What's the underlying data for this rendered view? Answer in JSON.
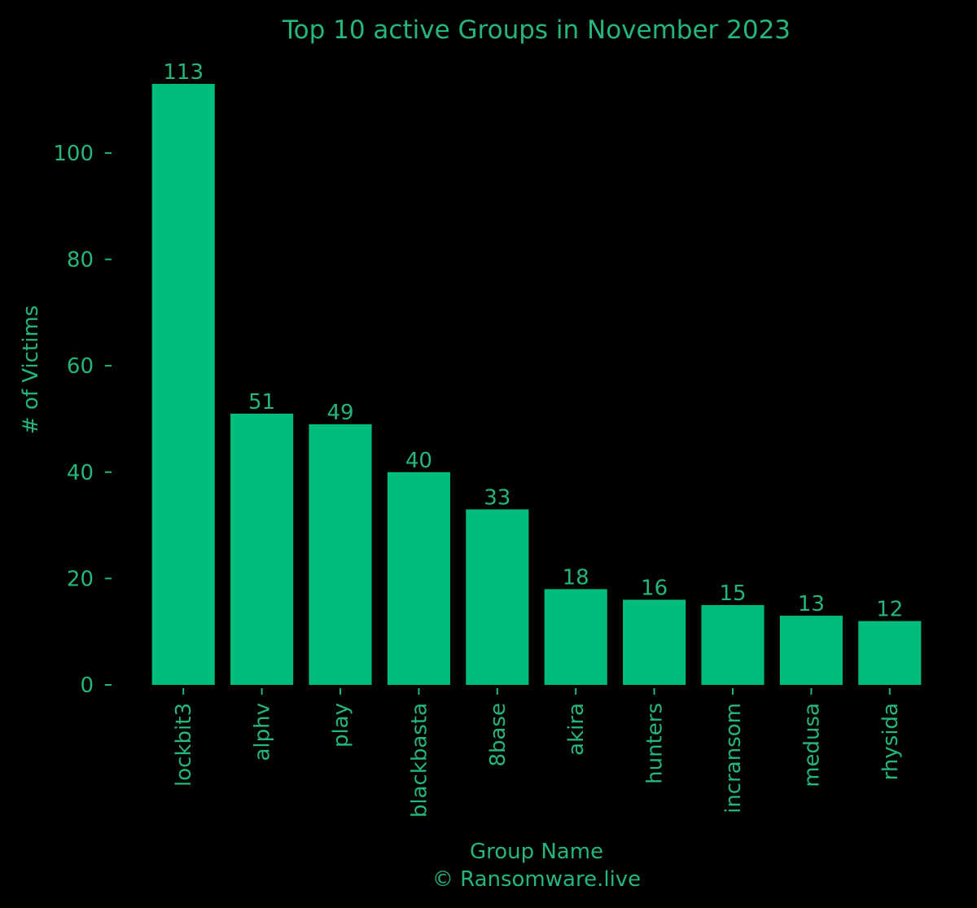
{
  "chart_data": {
    "type": "bar",
    "title": "Top 10 active Groups in November 2023",
    "xlabel": "Group Name",
    "ylabel": "# of Victims",
    "credit": "© Ransomware.live",
    "categories": [
      "lockbit3",
      "alphv",
      "play",
      "blackbasta",
      "8base",
      "akira",
      "hunters",
      "incransom",
      "medusa",
      "rhysida"
    ],
    "values": [
      113,
      51,
      49,
      40,
      33,
      18,
      16,
      15,
      13,
      12
    ],
    "yticks": [
      0,
      20,
      40,
      60,
      80,
      100
    ],
    "ylim": [
      0,
      113
    ],
    "grid": false,
    "legend": "none"
  },
  "colors": {
    "background": "#000000",
    "bar": "#00bd7e",
    "text": "#26b57a"
  }
}
